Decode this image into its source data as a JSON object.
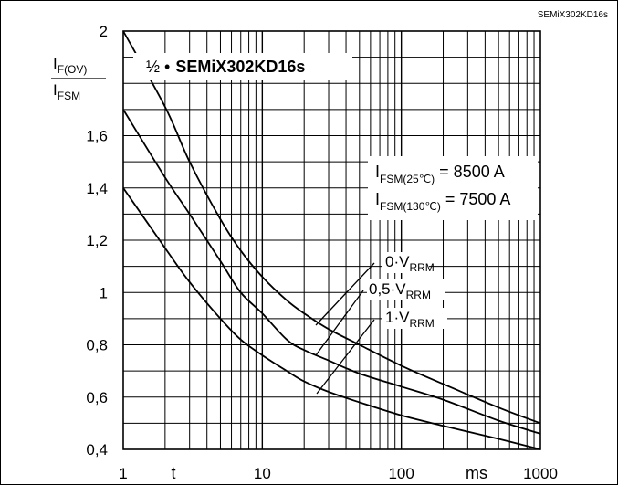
{
  "chart_data": {
    "type": "line",
    "tag": "SEMiX302KD16s",
    "title_prefix": "½ •",
    "title": "SEMiX302KD16s",
    "ylabel": {
      "numerator": "I",
      "numerator_sub": "F(OV)",
      "denominator": "I",
      "denominator_sub": "FSM"
    },
    "xlabel_symbol": "t",
    "xlabel_unit": "ms",
    "x_scale": "log",
    "xlim": [
      1,
      1000
    ],
    "ylim": [
      0.4,
      2.0
    ],
    "x_ticks": [
      {
        "value": 1,
        "label": "1"
      },
      {
        "value": 10,
        "label": "10"
      },
      {
        "value": 100,
        "label": "100"
      },
      {
        "value": 1000,
        "label": "1000"
      }
    ],
    "y_ticks": [
      {
        "value": 0.4,
        "label": "0,4"
      },
      {
        "value": 0.6,
        "label": "0,6"
      },
      {
        "value": 0.8,
        "label": "0,8"
      },
      {
        "value": 1.0,
        "label": "1"
      },
      {
        "value": 1.2,
        "label": "1,2"
      },
      {
        "value": 1.4,
        "label": "1,4"
      },
      {
        "value": 1.6,
        "label": "1,6"
      },
      {
        "value": 2.0,
        "label": "2"
      }
    ],
    "grid": true,
    "annotations": [
      {
        "main": "I",
        "sub": "FSM(25℃)",
        "value": " = 8500 A"
      },
      {
        "main": "I",
        "sub": "FSM(130℃)",
        "value": " = 7500 A"
      }
    ],
    "series": [
      {
        "name_prefix": "0·V",
        "name_sub": "RRM",
        "x": [
          1,
          2,
          3,
          5,
          7,
          10,
          15,
          20,
          30,
          50,
          100,
          200,
          500,
          1000
        ],
        "y": [
          2.0,
          1.71,
          1.5,
          1.28,
          1.16,
          1.06,
          0.97,
          0.92,
          0.86,
          0.8,
          0.72,
          0.65,
          0.56,
          0.5
        ]
      },
      {
        "name_prefix": "0,5·V",
        "name_sub": "RRM",
        "x": [
          1,
          2,
          3,
          5,
          7,
          10,
          15,
          20,
          30,
          50,
          100,
          200,
          500,
          1000
        ],
        "y": [
          1.7,
          1.44,
          1.3,
          1.12,
          1.0,
          0.92,
          0.82,
          0.78,
          0.74,
          0.69,
          0.64,
          0.59,
          0.51,
          0.46
        ]
      },
      {
        "name_prefix": "1·V",
        "name_sub": "RRM",
        "x": [
          1,
          2,
          3,
          5,
          7,
          10,
          15,
          20,
          30,
          50,
          100,
          200,
          500,
          1000
        ],
        "y": [
          1.4,
          1.17,
          1.04,
          0.9,
          0.82,
          0.76,
          0.7,
          0.66,
          0.62,
          0.58,
          0.53,
          0.49,
          0.44,
          0.4
        ]
      }
    ]
  }
}
